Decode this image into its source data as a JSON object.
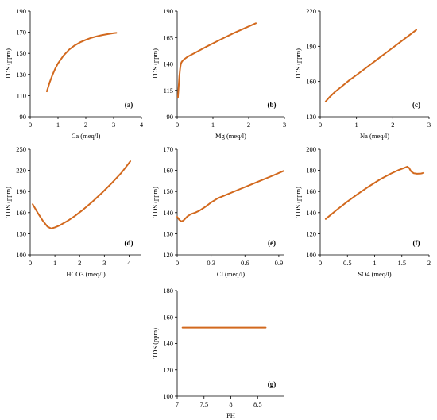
{
  "style": {
    "line_color": "#d2691e",
    "axis_color": "#000000",
    "background": "#ffffff"
  },
  "chart_data": [
    {
      "type": "line",
      "tag": "(a)",
      "xlabel": "Ca (meq/l)",
      "ylabel": "TDS (ppm)",
      "xlim": [
        0,
        4
      ],
      "ylim": [
        90,
        190
      ],
      "xticks": [
        0,
        1,
        2,
        3,
        4
      ],
      "yticks": [
        90,
        110,
        130,
        150,
        170,
        190
      ],
      "series": [
        {
          "x": [
            0.6,
            0.7,
            0.8,
            0.9,
            1.0,
            1.2,
            1.4,
            1.6,
            1.8,
            2.0,
            2.2,
            2.4,
            2.6,
            2.8,
            3.0,
            3.1
          ],
          "y": [
            114,
            122.5,
            129.5,
            135.5,
            140.5,
            148,
            153.5,
            157.5,
            160.5,
            162.8,
            164.7,
            166.2,
            167.4,
            168.3,
            169.1,
            169.4
          ]
        }
      ]
    },
    {
      "type": "line",
      "tag": "(b)",
      "xlabel": "Mg (meq/l)",
      "ylabel": "TDS (ppm)",
      "xlim": [
        0,
        3
      ],
      "ylim": [
        90,
        190
      ],
      "xticks": [
        0,
        1,
        2,
        3
      ],
      "yticks": [
        90,
        115,
        140,
        165,
        190
      ],
      "series": [
        {
          "x": [
            0.02,
            0.04,
            0.06,
            0.08,
            0.1,
            0.12,
            0.15,
            0.2,
            0.3,
            0.5,
            0.8,
            1.0,
            1.3,
            1.6,
            1.9,
            2.2
          ],
          "y": [
            108,
            118,
            128,
            135,
            139.5,
            141.5,
            143,
            144.5,
            147,
            150.5,
            156,
            159.5,
            164.5,
            169.5,
            174,
            178.5
          ]
        }
      ]
    },
    {
      "type": "line",
      "tag": "(c)",
      "xlabel": "Na (meq/l)",
      "ylabel": "TDS (ppm)",
      "xlim": [
        0,
        3
      ],
      "ylim": [
        130,
        220
      ],
      "xticks": [
        0,
        1,
        2,
        3
      ],
      "yticks": [
        130,
        160,
        190,
        220
      ],
      "series": [
        {
          "x": [
            0.15,
            0.25,
            0.4,
            0.6,
            0.8,
            1.0,
            1.3,
            1.6,
            1.9,
            2.2,
            2.5,
            2.65
          ],
          "y": [
            143,
            146.5,
            151,
            156,
            161,
            165.5,
            172.5,
            179.5,
            186.5,
            193.5,
            200.5,
            204
          ]
        }
      ]
    },
    {
      "type": "line",
      "tag": "(d)",
      "xlabel": "HCO3 (meq/l)",
      "ylabel": "TDS (ppm)",
      "xlim": [
        0,
        4.5
      ],
      "ylim": [
        100,
        250
      ],
      "xticks": [
        0,
        1,
        2,
        3,
        4
      ],
      "yticks": [
        100,
        130,
        160,
        190,
        220,
        250
      ],
      "series": [
        {
          "x": [
            0.1,
            0.3,
            0.5,
            0.7,
            0.85,
            1.0,
            1.2,
            1.5,
            1.8,
            2.1,
            2.5,
            2.9,
            3.3,
            3.7,
            4.05
          ],
          "y": [
            172,
            160,
            149,
            140,
            137.5,
            139,
            142,
            148,
            155,
            163,
            175,
            188,
            202,
            217,
            233
          ]
        }
      ]
    },
    {
      "type": "line",
      "tag": "(e)",
      "xlabel": "Cl (meq/l)",
      "ylabel": "TDS (ppm)",
      "xlim": [
        0,
        0.95
      ],
      "ylim": [
        120,
        170
      ],
      "xticks": [
        0,
        0.3,
        0.6,
        0.9
      ],
      "yticks": [
        120,
        130,
        140,
        150,
        160,
        170
      ],
      "series": [
        {
          "x": [
            0.0,
            0.02,
            0.04,
            0.06,
            0.09,
            0.12,
            0.16,
            0.2,
            0.25,
            0.3,
            0.36,
            0.45,
            0.55,
            0.65,
            0.75,
            0.85,
            0.94
          ],
          "y": [
            138,
            136.5,
            135.8,
            136.5,
            138.2,
            139.3,
            140,
            141,
            142.8,
            144.8,
            146.8,
            148.8,
            151,
            153.2,
            155.4,
            157.6,
            159.7
          ]
        }
      ]
    },
    {
      "type": "line",
      "tag": "(f)",
      "xlabel": "SO4 (meq/l)",
      "ylabel": "TDS (ppm)",
      "xlim": [
        0,
        2
      ],
      "ylim": [
        100,
        200
      ],
      "xticks": [
        0,
        0.5,
        1,
        1.5,
        2
      ],
      "yticks": [
        100,
        120,
        140,
        160,
        180,
        200
      ],
      "series": [
        {
          "x": [
            0.1,
            0.3,
            0.5,
            0.7,
            0.9,
            1.1,
            1.3,
            1.45,
            1.55,
            1.6,
            1.63,
            1.67,
            1.72,
            1.78,
            1.85,
            1.9
          ],
          "y": [
            134,
            142.5,
            150.5,
            158,
            165,
            171.5,
            177,
            180.5,
            182.5,
            183.5,
            182.5,
            179,
            177.2,
            176.8,
            177,
            177.5
          ]
        }
      ]
    },
    {
      "type": "line",
      "tag": "(g)",
      "xlabel": "PH",
      "ylabel": "TDS (ppm)",
      "xlim": [
        7,
        9
      ],
      "ylim": [
        100,
        180
      ],
      "xticks": [
        7,
        7.5,
        8,
        8.5
      ],
      "yticks": [
        100,
        120,
        140,
        160,
        180
      ],
      "series": [
        {
          "x": [
            7.1,
            8.65
          ],
          "y": [
            152,
            152
          ]
        }
      ]
    }
  ]
}
